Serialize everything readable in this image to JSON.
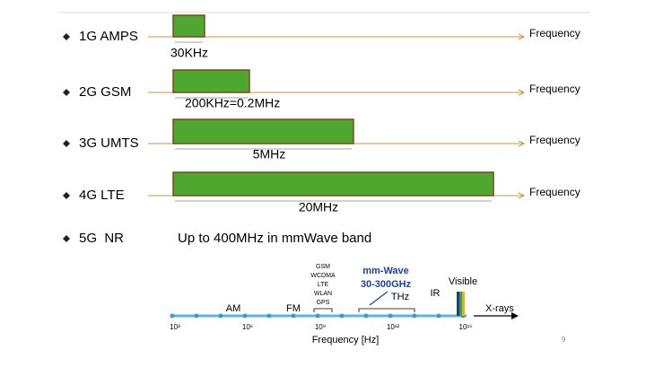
{
  "rows": [
    {
      "label": "1G  AMPS",
      "axis": "Frequency",
      "bandwidth": "30KHz"
    },
    {
      "label": "2G  GSM",
      "axis": "Frequency",
      "bandwidth": "200KHz=0.2MHz"
    },
    {
      "label": "3G  UMTS",
      "axis": "Frequency",
      "bandwidth": "5MHz"
    },
    {
      "label": "4G  LTE",
      "axis": "Frequency",
      "bandwidth": "20MHz"
    }
  ],
  "nr": {
    "label": "5G  NR",
    "text": "Up to 400MHz in mmWave band"
  },
  "spectrum": {
    "bands": {
      "am": "AM",
      "fm": "FM",
      "cellular": [
        "GSM",
        "WCDMA",
        "LTE",
        "WLAN",
        "GPS"
      ],
      "mmwave": "mm-Wave",
      "mmwave_range": "30-300GHz",
      "thz": "THz",
      "ir": "IR",
      "visible": "Visible",
      "xrays": "X-rays"
    },
    "ticks": [
      "10³",
      "10⁶",
      "10⁹",
      "10¹²",
      "10¹⁵"
    ],
    "axis_label": "Frequency [Hz]"
  },
  "page_number": "9"
}
